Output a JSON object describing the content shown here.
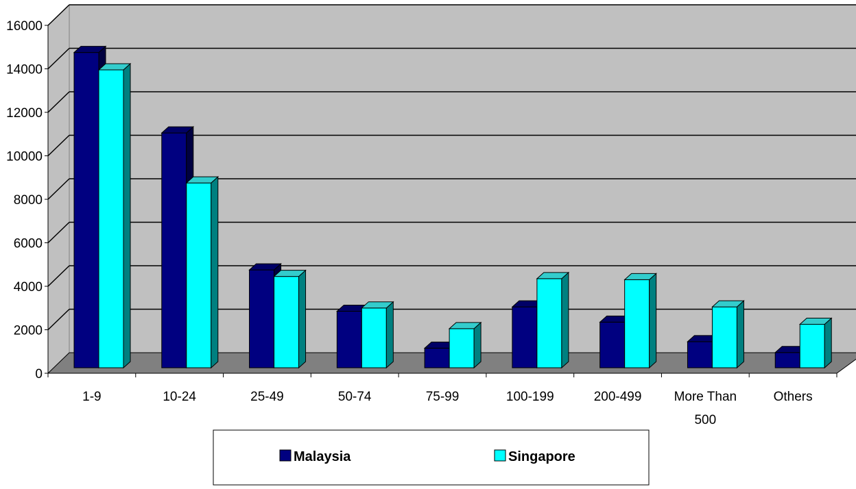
{
  "chart_data": {
    "type": "bar",
    "categories": [
      "1-9",
      "10-24",
      "25-49",
      "50-74",
      "75-99",
      "100-199",
      "200-499",
      "More Than 500",
      "Others"
    ],
    "category_label_lines": [
      [
        "1-9"
      ],
      [
        "10-24"
      ],
      [
        "25-49"
      ],
      [
        "50-74"
      ],
      [
        "75-99"
      ],
      [
        "100-199"
      ],
      [
        "200-499"
      ],
      [
        "More Than",
        "500"
      ],
      [
        "Others"
      ]
    ],
    "series": [
      {
        "name": "Malaysia",
        "values": [
          14500,
          10800,
          4500,
          2600,
          900,
          2800,
          2100,
          1200,
          700
        ],
        "color": "#000080",
        "side_color": "#000040",
        "top_color": "#000066"
      },
      {
        "name": "Singapore",
        "values": [
          13700,
          8500,
          4200,
          2750,
          1800,
          4100,
          4050,
          2800,
          2000
        ],
        "color": "#00FFFF",
        "side_color": "#008080",
        "top_color": "#33CCCC"
      }
    ],
    "y_ticks": [
      "0",
      "2000",
      "4000",
      "6000",
      "8000",
      "10000",
      "12000",
      "14000",
      "16000"
    ],
    "ylim": [
      0,
      16000
    ],
    "grid": true,
    "legend_position": "bottom",
    "wall_color": "#C0C0C0",
    "floor_color": "#808080"
  }
}
